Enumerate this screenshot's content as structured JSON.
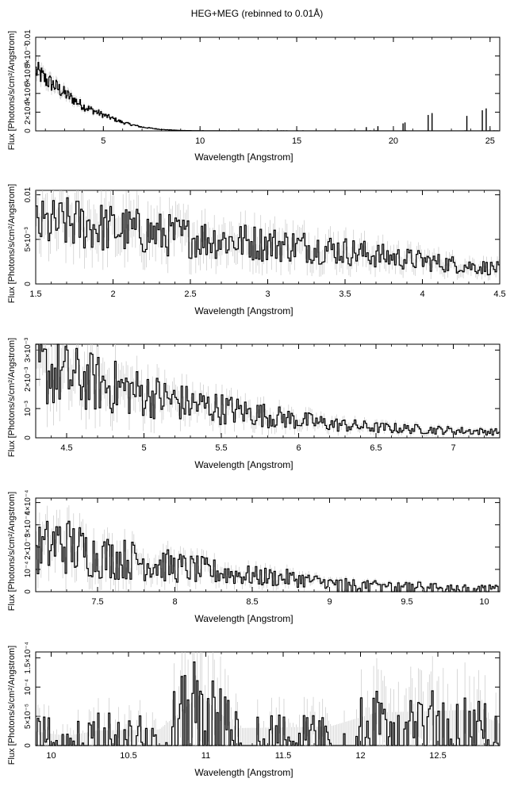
{
  "figure": {
    "title": "HEG+MEG (rebinned to 0.01Å)"
  },
  "chart_data": [
    {
      "type": "line",
      "xlabel": "Wavelength [Angstrom]",
      "ylabel": "Flux [Photons/s/cm²/Angstrom]",
      "xlim": [
        1.5,
        25.5
      ],
      "ylim": [
        0,
        0.01
      ],
      "xticks": [
        5,
        10,
        15,
        20,
        25
      ],
      "yticks": [
        {
          "v": 0,
          "label": "0"
        },
        {
          "v": 0.002,
          "label": "2×10⁻³"
        },
        {
          "v": 0.004,
          "label": "4×10⁻³"
        },
        {
          "v": 0.006,
          "label": "6×10⁻³"
        },
        {
          "v": 0.008,
          "label": "8×10⁻³"
        },
        {
          "v": 0.01,
          "label": "0.01"
        }
      ],
      "series": [
        {
          "x": [
            1.5,
            2,
            2.5,
            3,
            3.5,
            4,
            5,
            6,
            7,
            8,
            9,
            10,
            12,
            15,
            18,
            20,
            22,
            25.5
          ],
          "y": [
            0.0065,
            0.0055,
            0.0048,
            0.004,
            0.0033,
            0.0026,
            0.0017,
            0.0009,
            0.0004,
            0.00015,
            5e-05,
            2e-05,
            1e-05,
            1e-05,
            1e-05,
            1e-05,
            1e-05,
            1e-05
          ]
        }
      ]
    },
    {
      "type": "line",
      "xlabel": "Wavelength [Angstrom]",
      "ylabel": "Flux [Photons/s/cm²/Angstrom]",
      "xlim": [
        1.5,
        4.5
      ],
      "ylim": [
        0,
        0.0105
      ],
      "xticks": [
        1.5,
        2,
        2.5,
        3,
        3.5,
        4,
        4.5
      ],
      "yticks": [
        {
          "v": 0,
          "label": "0"
        },
        {
          "v": 0.005,
          "label": "5×10⁻³"
        },
        {
          "v": 0.01,
          "label": "0.01"
        }
      ],
      "series": [
        {
          "x": [
            1.5,
            1.75,
            2,
            2.25,
            2.5,
            2.75,
            3,
            3.25,
            3.5,
            3.75,
            4,
            4.25,
            4.5
          ],
          "y": [
            0.0065,
            0.0068,
            0.0062,
            0.0057,
            0.0052,
            0.0049,
            0.0045,
            0.0042,
            0.0037,
            0.0031,
            0.0026,
            0.0021,
            0.0017
          ]
        }
      ]
    },
    {
      "type": "line",
      "xlabel": "Wavelength [Angstrom]",
      "ylabel": "Flux [Photons/s/cm²/Angstrom]",
      "xlim": [
        4.3,
        7.3
      ],
      "ylim": [
        0,
        0.0032
      ],
      "xticks": [
        4.5,
        5,
        5.5,
        6,
        6.5,
        7
      ],
      "yticks": [
        {
          "v": 0,
          "label": "0"
        },
        {
          "v": 0.001,
          "label": "10⁻³"
        },
        {
          "v": 0.002,
          "label": "2×10⁻³"
        },
        {
          "v": 0.003,
          "label": "3×10⁻³"
        }
      ],
      "series": [
        {
          "x": [
            4.3,
            4.5,
            4.75,
            5,
            5.25,
            5.5,
            5.75,
            6,
            6.25,
            6.5,
            6.75,
            7,
            7.3
          ],
          "y": [
            0.0024,
            0.0021,
            0.0018,
            0.0015,
            0.0012,
            0.001,
            0.0008,
            0.0006,
            0.00045,
            0.00035,
            0.0003,
            0.00025,
            0.0002
          ]
        }
      ]
    },
    {
      "type": "line",
      "xlabel": "Wavelength [Angstrom]",
      "ylabel": "Flux [Photons/s/cm²/Angstrom]",
      "xlim": [
        7.1,
        10.1
      ],
      "ylim": [
        0,
        0.00042
      ],
      "xticks": [
        7.5,
        8,
        8.5,
        9,
        9.5,
        10
      ],
      "yticks": [
        {
          "v": 0,
          "label": "0"
        },
        {
          "v": 0.0001,
          "label": "10⁻⁴"
        },
        {
          "v": 0.0002,
          "label": "2×10⁻⁴"
        },
        {
          "v": 0.0003,
          "label": "3×10⁻⁴"
        },
        {
          "v": 0.0004,
          "label": "4×10⁻⁴"
        }
      ],
      "series": [
        {
          "x": [
            7.1,
            7.25,
            7.5,
            7.75,
            8,
            8.25,
            8.5,
            8.75,
            9,
            9.25,
            9.5,
            9.75,
            10.1
          ],
          "y": [
            0.00018,
            0.00022,
            0.00016,
            0.00014,
            0.00011,
            9e-05,
            7e-05,
            6e-05,
            4e-05,
            3e-05,
            3e-05,
            2e-05,
            2e-05
          ]
        }
      ]
    },
    {
      "type": "line",
      "xlabel": "Wavelength [Angstrom]",
      "ylabel": "Flux [Photons/s/cm²/Angstrom]",
      "xlim": [
        9.9,
        12.9
      ],
      "ylim": [
        0,
        0.00016
      ],
      "xticks": [
        10,
        10.5,
        11,
        11.5,
        12,
        12.5
      ],
      "yticks": [
        {
          "v": 0,
          "label": "0"
        },
        {
          "v": 5e-05,
          "label": "5×10⁻⁵"
        },
        {
          "v": 0.0001,
          "label": "10⁻⁴"
        },
        {
          "v": 0.00015,
          "label": "1.5×10⁻⁴"
        }
      ],
      "series": [
        {
          "x": [
            9.9,
            10.1,
            10.3,
            10.5,
            10.7,
            10.96,
            11.2,
            11.5,
            11.8,
            12.1,
            12.4,
            12.7,
            12.9
          ],
          "y": [
            3e-05,
            2e-05,
            3e-05,
            3e-05,
            3e-05,
            9e-05,
            3e-05,
            3e-05,
            3e-05,
            5e-05,
            5e-05,
            5e-05,
            3e-05
          ]
        }
      ]
    }
  ]
}
